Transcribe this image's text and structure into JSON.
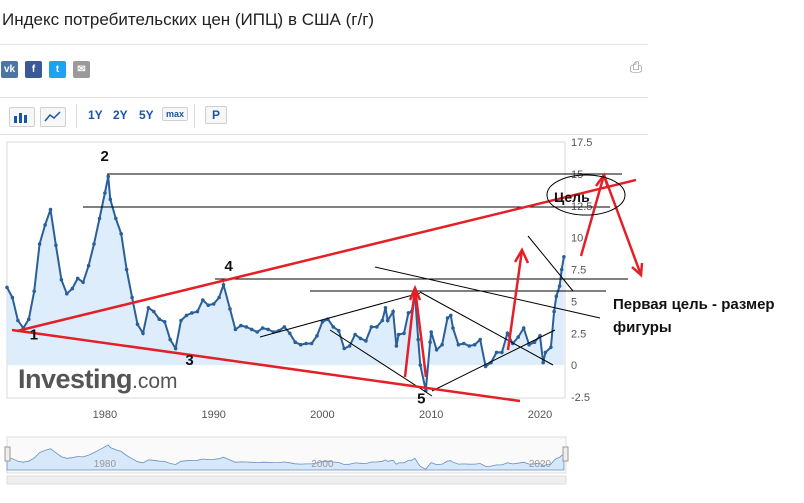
{
  "header": {
    "title": "Индекс потребительских цен (ИПЦ) в США (г/г)",
    "share": {
      "vk": "vk",
      "fb": "f",
      "tw": "t",
      "email": "✉"
    },
    "print_icon": "printer-icon"
  },
  "toolbar": {
    "range_1y": "1Y",
    "range_2y": "2Y",
    "range_5y": "5Y",
    "range_max": "max",
    "p_label": "P"
  },
  "watermark": {
    "brand": "Investing",
    "suffix": ".com"
  },
  "colors": {
    "line": "#2b5f98",
    "fill": "#d6e8fa",
    "annotation": "#e32027",
    "axis_text": "#555555"
  },
  "chart_data": {
    "type": "area",
    "title": "",
    "xlabel": "",
    "ylabel": "",
    "xlim": [
      1971,
      2022.3
    ],
    "ylim": [
      -2.5,
      17.5
    ],
    "x_ticks": [
      "1980",
      "1990",
      "2000",
      "2010",
      "2020"
    ],
    "y_ticks": [
      "17.5",
      "15",
      "12.5",
      "10",
      "7.5",
      "5",
      "2.5",
      "0",
      "-2.5"
    ],
    "grid": false,
    "series": [
      {
        "name": "",
        "points": [
          [
            1971,
            6.1
          ],
          [
            1971.5,
            5.3
          ],
          [
            1972,
            3.5
          ],
          [
            1972.5,
            2.9
          ],
          [
            1973,
            3.6
          ],
          [
            1973.5,
            5.8
          ],
          [
            1974,
            9.5
          ],
          [
            1974.5,
            11
          ],
          [
            1975,
            12.2
          ],
          [
            1975.5,
            9.4
          ],
          [
            1976,
            6.7
          ],
          [
            1976.5,
            5.6
          ],
          [
            1977,
            6.0
          ],
          [
            1977.5,
            6.8
          ],
          [
            1978,
            6.5
          ],
          [
            1978.5,
            7.8
          ],
          [
            1979,
            9.5
          ],
          [
            1979.5,
            11.5
          ],
          [
            1980,
            13.5
          ],
          [
            1980.3,
            14.8
          ],
          [
            1980.5,
            13
          ],
          [
            1981,
            11.5
          ],
          [
            1981.5,
            10.3
          ],
          [
            1982,
            7.5
          ],
          [
            1982.5,
            5.3
          ],
          [
            1983,
            3.2
          ],
          [
            1983.5,
            2.5
          ],
          [
            1984,
            4.5
          ],
          [
            1984.5,
            4.2
          ],
          [
            1985,
            3.6
          ],
          [
            1985.5,
            3.4
          ],
          [
            1986,
            2.0
          ],
          [
            1986.5,
            1.3
          ],
          [
            1987,
            3.5
          ],
          [
            1987.5,
            3.9
          ],
          [
            1988,
            4.1
          ],
          [
            1988.5,
            4.2
          ],
          [
            1989,
            5.1
          ],
          [
            1989.5,
            4.7
          ],
          [
            1990,
            4.8
          ],
          [
            1990.5,
            5.3
          ],
          [
            1990.9,
            6.3
          ],
          [
            1991.5,
            4.4
          ],
          [
            1992,
            2.8
          ],
          [
            1992.5,
            3.1
          ],
          [
            1993,
            3.0
          ],
          [
            1993.5,
            2.8
          ],
          [
            1994,
            2.6
          ],
          [
            1994.5,
            2.9
          ],
          [
            1995,
            2.8
          ],
          [
            1995.5,
            2.6
          ],
          [
            1996,
            2.7
          ],
          [
            1996.5,
            3.0
          ],
          [
            1997,
            2.5
          ],
          [
            1997.5,
            1.8
          ],
          [
            1998,
            1.6
          ],
          [
            1998.5,
            1.7
          ],
          [
            1999,
            1.7
          ],
          [
            1999.5,
            2.3
          ],
          [
            2000,
            3.4
          ],
          [
            2000.5,
            3.6
          ],
          [
            2001,
            3.0
          ],
          [
            2001.5,
            2.7
          ],
          [
            2002,
            1.3
          ],
          [
            2002.5,
            1.5
          ],
          [
            2003,
            2.4
          ],
          [
            2003.5,
            2.1
          ],
          [
            2004,
            1.9
          ],
          [
            2004.5,
            3.0
          ],
          [
            2005,
            3.0
          ],
          [
            2005.5,
            3.5
          ],
          [
            2005.8,
            4.5
          ],
          [
            2006,
            3.5
          ],
          [
            2006.5,
            4.2
          ],
          [
            2006.8,
            1.5
          ],
          [
            2007,
            2.4
          ],
          [
            2007.5,
            2.5
          ],
          [
            2007.9,
            4.1
          ],
          [
            2008.2,
            4.2
          ],
          [
            2008.5,
            5.6
          ],
          [
            2008.8,
            2.0
          ],
          [
            2009,
            0.0
          ],
          [
            2009.5,
            -2.0
          ],
          [
            2009.9,
            1.8
          ],
          [
            2010,
            2.6
          ],
          [
            2010.5,
            1.2
          ],
          [
            2011,
            1.6
          ],
          [
            2011.5,
            3.7
          ],
          [
            2011.8,
            3.9
          ],
          [
            2012,
            2.9
          ],
          [
            2012.5,
            1.6
          ],
          [
            2013,
            1.7
          ],
          [
            2013.5,
            1.5
          ],
          [
            2014,
            1.6
          ],
          [
            2014.5,
            2.0
          ],
          [
            2015,
            -0.1
          ],
          [
            2015.5,
            0.2
          ],
          [
            2016,
            1.0
          ],
          [
            2016.5,
            1.0
          ],
          [
            2017,
            2.5
          ],
          [
            2017.5,
            1.7
          ],
          [
            2018,
            2.2
          ],
          [
            2018.5,
            2.9
          ],
          [
            2019,
            1.6
          ],
          [
            2019.5,
            1.8
          ],
          [
            2020,
            2.3
          ],
          [
            2020.3,
            0.2
          ],
          [
            2020.5,
            1.0
          ],
          [
            2021,
            1.4
          ],
          [
            2021.3,
            4.2
          ],
          [
            2021.5,
            5.4
          ],
          [
            2021.8,
            6.2
          ],
          [
            2022,
            7.5
          ],
          [
            2022.2,
            8.5
          ]
        ]
      }
    ],
    "annotations": {
      "wave_labels": [
        {
          "label": "1",
          "x": 1973.1,
          "y": 2.0
        },
        {
          "label": "2",
          "x": 1979.6,
          "y": 16.0
        },
        {
          "label": "3",
          "x": 1987.4,
          "y": 0.0
        },
        {
          "label": "4",
          "x": 1991.0,
          "y": 7.4
        },
        {
          "label": "5",
          "x": 2008.7,
          "y": -3.0
        }
      ],
      "goal_label": "Цель",
      "note_line1": "Первая цель - размер",
      "note_line2": "фигуры"
    }
  }
}
